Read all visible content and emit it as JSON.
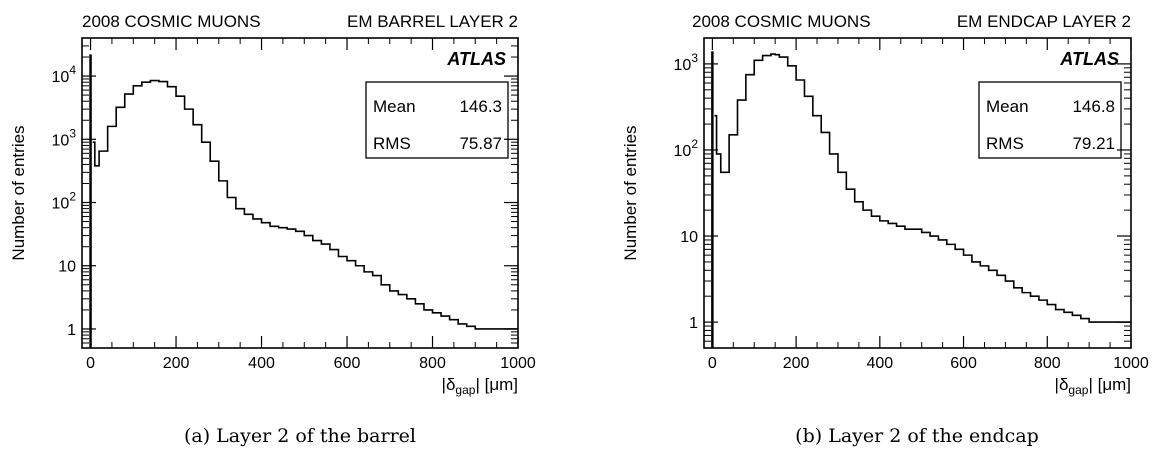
{
  "panels": [
    {
      "header_left": "2008 COSMIC MUONS",
      "header_right": "EM BARREL LAYER 2",
      "brand": "ATLAS",
      "stats": [
        {
          "label": "Mean",
          "value": "146.3"
        },
        {
          "label": "RMS",
          "value": "75.87"
        }
      ],
      "caption": "(a) Layer 2 of the barrel"
    },
    {
      "header_left": "2008 COSMIC MUONS",
      "header_right": "EM ENDCAP LAYER 2",
      "brand": "ATLAS",
      "stats": [
        {
          "label": "Mean",
          "value": "146.8"
        },
        {
          "label": "RMS",
          "value": "79.21"
        }
      ],
      "caption": "(b) Layer 2 of the endcap"
    }
  ],
  "chart_data": [
    {
      "type": "histogram",
      "title": "2008 COSMIC MUONS    EM BARREL LAYER 2",
      "xlabel": "|δgap| [μm]",
      "ylabel": "Number of entries",
      "yscale": "log",
      "xlim": [
        -20,
        1000
      ],
      "ylim": [
        0.5,
        40000
      ],
      "x_ticks": [
        "0",
        "200",
        "400",
        "600",
        "800",
        "1000"
      ],
      "y_ticks": [
        "1",
        "10",
        "10^2",
        "10^3",
        "10^4"
      ],
      "legend_position": "top-right",
      "stats": {
        "mean": 146.3,
        "rms": 75.87
      },
      "spike": {
        "x": 0,
        "y": 22000
      },
      "x": [
        5,
        10,
        20,
        40,
        60,
        80,
        100,
        120,
        140,
        150,
        160,
        180,
        200,
        220,
        240,
        260,
        280,
        300,
        320,
        340,
        360,
        380,
        400,
        420,
        440,
        460,
        480,
        500,
        520,
        540,
        560,
        580,
        600,
        620,
        640,
        660,
        680,
        700,
        720,
        740,
        760,
        780,
        800,
        820,
        840,
        860,
        880,
        900,
        920,
        940,
        960,
        980,
        1000
      ],
      "y": [
        900,
        380,
        650,
        1600,
        3200,
        5200,
        7000,
        8000,
        8500,
        8500,
        8200,
        6800,
        4800,
        3000,
        1700,
        900,
        450,
        220,
        120,
        80,
        65,
        55,
        48,
        42,
        40,
        38,
        35,
        30,
        25,
        22,
        18,
        14,
        12,
        10,
        8,
        7,
        5,
        4,
        3.5,
        3,
        2.5,
        2,
        1.8,
        1.6,
        1.4,
        1.2,
        1.1,
        1.0,
        1.0,
        1.0,
        1.0,
        1.0,
        1.0
      ]
    },
    {
      "type": "histogram",
      "title": "2008 COSMIC MUONS    EM ENDCAP LAYER 2",
      "xlabel": "|δgap| [μm]",
      "ylabel": "Number of entries",
      "yscale": "log",
      "xlim": [
        -20,
        1000
      ],
      "ylim": [
        0.5,
        2000
      ],
      "x_ticks": [
        "0",
        "200",
        "400",
        "600",
        "800",
        "1000"
      ],
      "y_ticks": [
        "1",
        "10",
        "10^2",
        "10^3"
      ],
      "legend_position": "top-right",
      "stats": {
        "mean": 146.8,
        "rms": 79.21
      },
      "spike": {
        "x": 0,
        "y": 1400
      },
      "x": [
        5,
        10,
        20,
        40,
        60,
        80,
        100,
        120,
        140,
        150,
        160,
        180,
        200,
        220,
        240,
        260,
        280,
        300,
        320,
        340,
        360,
        380,
        400,
        420,
        440,
        460,
        480,
        500,
        520,
        540,
        560,
        580,
        600,
        620,
        640,
        660,
        680,
        700,
        720,
        740,
        760,
        780,
        800,
        820,
        840,
        860,
        880,
        900,
        920,
        940,
        960,
        980,
        1000
      ],
      "y": [
        250,
        90,
        55,
        150,
        380,
        750,
        1100,
        1250,
        1300,
        1280,
        1200,
        950,
        650,
        420,
        250,
        160,
        90,
        55,
        35,
        25,
        20,
        17,
        15,
        14,
        13,
        12,
        12,
        11,
        10,
        9,
        8,
        7,
        6,
        5,
        4.5,
        4,
        3.5,
        3,
        2.5,
        2.2,
        2,
        1.8,
        1.6,
        1.4,
        1.3,
        1.2,
        1.1,
        1.0,
        1.0,
        1.0,
        1.0,
        1.0,
        1.0
      ]
    }
  ]
}
